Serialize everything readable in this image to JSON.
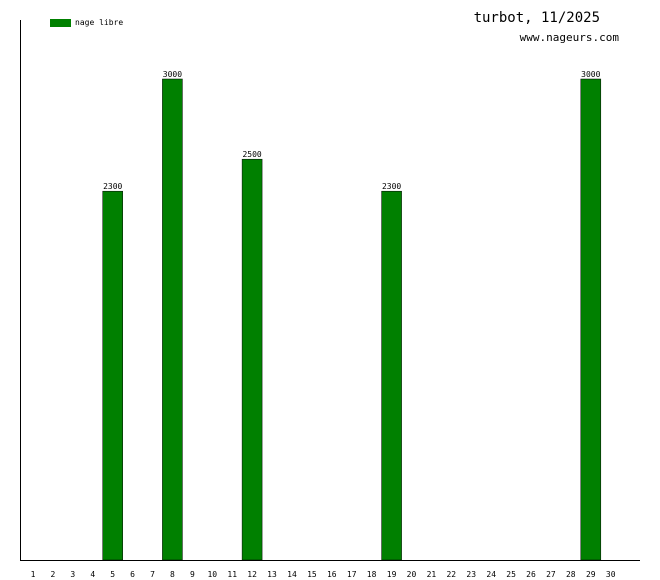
{
  "header": {
    "title": "turbot, 11/2025",
    "site": "www.nageurs.com"
  },
  "chart_data": {
    "type": "bar",
    "categories": [
      "1",
      "2",
      "3",
      "4",
      "5",
      "6",
      "7",
      "8",
      "9",
      "10",
      "11",
      "12",
      "13",
      "14",
      "15",
      "16",
      "17",
      "18",
      "19",
      "20",
      "21",
      "22",
      "23",
      "24",
      "25",
      "26",
      "27",
      "28",
      "29",
      "30"
    ],
    "series": [
      {
        "name": "nage libre",
        "color": "#008000",
        "values": [
          0,
          0,
          0,
          0,
          2300,
          0,
          0,
          3000,
          0,
          0,
          0,
          2500,
          0,
          0,
          0,
          0,
          0,
          0,
          2300,
          0,
          0,
          0,
          0,
          0,
          0,
          0,
          0,
          0,
          3000,
          0
        ]
      }
    ],
    "data_labels": [
      "",
      "",
      "",
      "",
      "2300",
      "",
      "",
      "3000",
      "",
      "",
      "",
      "2500",
      "",
      "",
      "",
      "",
      "",
      "",
      "2300",
      "",
      "",
      "",
      "",
      "",
      "",
      "",
      "",
      "",
      "3000",
      ""
    ],
    "ylim": [
      0,
      3000
    ],
    "grid": false,
    "legend_position": "top-left"
  }
}
